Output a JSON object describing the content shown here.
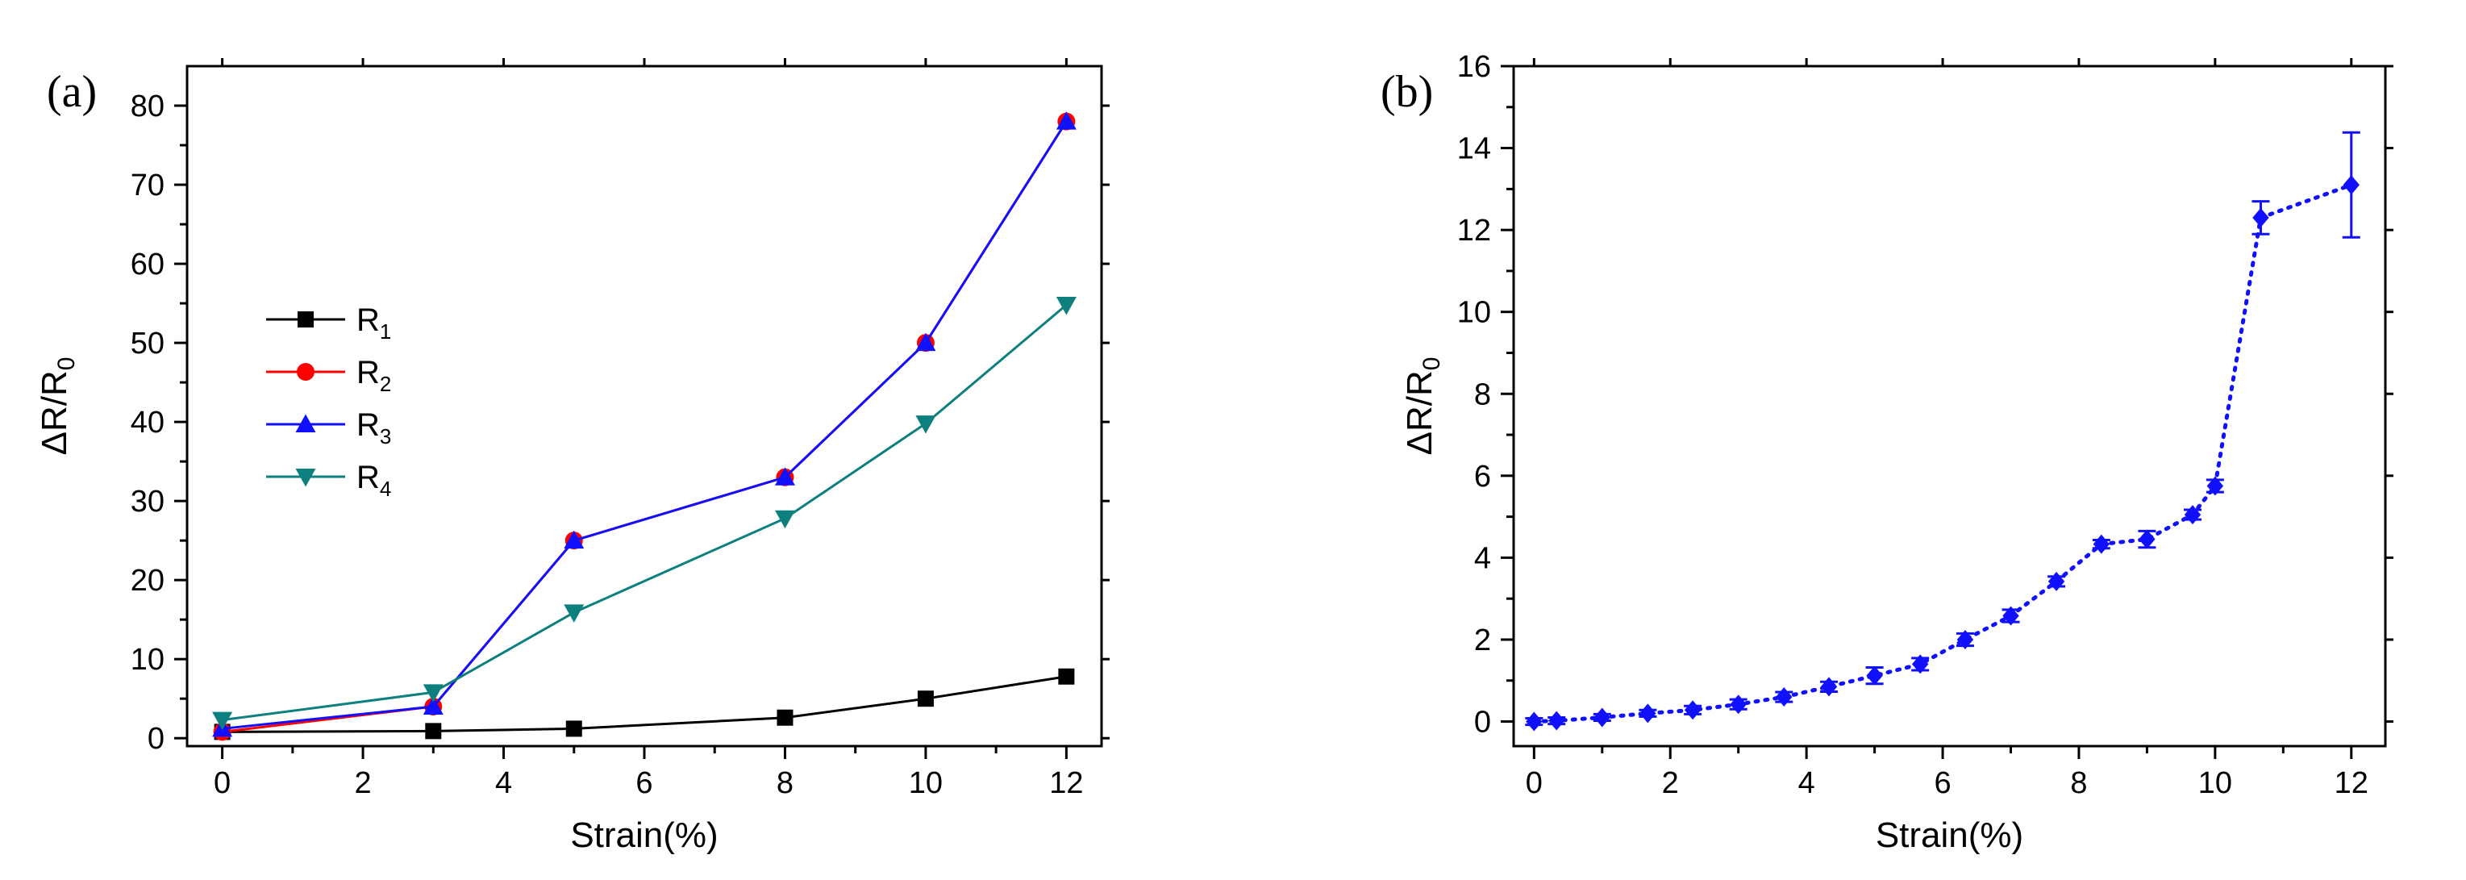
{
  "chart_data": [
    {
      "panel_label": "(a)",
      "type": "line",
      "xlabel": "Strain(%)",
      "ylabel": {
        "main": "ΔR/R",
        "sub": "0"
      },
      "xlim": [
        -0.5,
        12.5
      ],
      "ylim": [
        -1,
        85
      ],
      "xticks": [
        0,
        2,
        4,
        6,
        8,
        10,
        12
      ],
      "yticks": [
        0,
        10,
        20,
        30,
        40,
        50,
        60,
        70,
        80
      ],
      "legend_position": "middle-left",
      "series": [
        {
          "name": "R",
          "sub": "1",
          "color": "#000000",
          "marker": "square",
          "x": [
            0,
            3,
            5,
            8,
            10,
            12
          ],
          "y": [
            0.8,
            0.9,
            1.2,
            2.6,
            5.0,
            7.8
          ]
        },
        {
          "name": "R",
          "sub": "2",
          "color": "#ff0000",
          "marker": "circle",
          "x": [
            0,
            3,
            5,
            8,
            10,
            12
          ],
          "y": [
            0.8,
            4.0,
            25,
            33,
            50,
            78
          ]
        },
        {
          "name": "R",
          "sub": "3",
          "color": "#1010ff",
          "marker": "triangle-up",
          "x": [
            0,
            3,
            5,
            8,
            10,
            12
          ],
          "y": [
            1.2,
            4.0,
            25,
            33,
            50,
            78
          ]
        },
        {
          "name": "R",
          "sub": "4",
          "color": "#0e7f7f",
          "marker": "triangle-down",
          "x": [
            0,
            3,
            5,
            8,
            10,
            12
          ],
          "y": [
            2.3,
            5.8,
            15.9,
            27.8,
            39.8,
            54.8
          ]
        }
      ]
    },
    {
      "panel_label": "(b)",
      "type": "scatter",
      "xlabel": "Strain(%)",
      "ylabel": {
        "main": "ΔR/R",
        "sub": "0"
      },
      "xlim": [
        -0.3,
        12.5
      ],
      "ylim": [
        -0.6,
        16
      ],
      "xticks": [
        0,
        2,
        4,
        6,
        8,
        10,
        12
      ],
      "yticks": [
        0,
        2,
        4,
        6,
        8,
        10,
        12,
        14,
        16
      ],
      "series": [
        {
          "name": "ΔR/R0",
          "color": "#1010ff",
          "marker": "diamond",
          "line": "dotted",
          "x": [
            0,
            0.33,
            1.0,
            1.67,
            2.33,
            3.0,
            3.67,
            4.33,
            5.0,
            5.67,
            6.33,
            7.0,
            7.67,
            8.33,
            9.0,
            9.67,
            10.0,
            10.67,
            12.0
          ],
          "y": [
            0.0,
            0.02,
            0.1,
            0.2,
            0.28,
            0.42,
            0.6,
            0.85,
            1.12,
            1.4,
            2.0,
            2.58,
            3.42,
            4.33,
            4.45,
            5.05,
            5.75,
            12.3,
            13.1
          ],
          "error": [
            0.08,
            0.08,
            0.08,
            0.08,
            0.1,
            0.12,
            0.12,
            0.12,
            0.2,
            0.15,
            0.15,
            0.15,
            0.12,
            0.1,
            0.2,
            0.12,
            0.15,
            0.4,
            1.28
          ]
        }
      ]
    }
  ]
}
